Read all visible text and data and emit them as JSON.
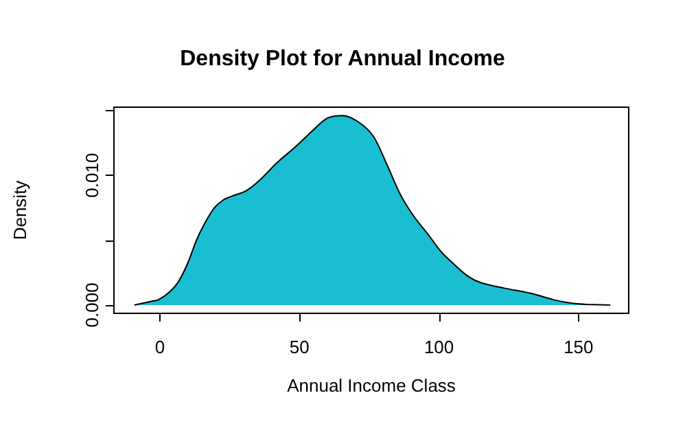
{
  "chart_data": {
    "type": "area",
    "title": "Density Plot for Annual Income",
    "xlabel": "Annual Income Class",
    "ylabel": "Density",
    "x": [
      -9.2,
      -2.8,
      -0.6,
      3.4,
      6.6,
      9.9,
      13.1,
      16.3,
      19.5,
      22.7,
      25.9,
      30.8,
      35.6,
      42.1,
      48.6,
      55.0,
      59.9,
      65.5,
      71.2,
      76.5,
      81.4,
      86.2,
      91.1,
      95.9,
      100.8,
      105.6,
      110.5,
      115.3,
      123.4,
      133.1,
      141.2,
      149.3,
      161.4
    ],
    "series": [
      {
        "color": "#19bfd0",
        "values": [
          0,
          0.0003,
          0.0004,
          0.001,
          0.0018,
          0.0032,
          0.005,
          0.0064,
          0.0075,
          0.0081,
          0.0084,
          0.0088,
          0.0096,
          0.011,
          0.0122,
          0.0135,
          0.0144,
          0.0146,
          0.0141,
          0.013,
          0.0108,
          0.0085,
          0.0068,
          0.0055,
          0.0041,
          0.0031,
          0.0022,
          0.0017,
          0.0013,
          0.0009,
          0.0004,
          0.0001,
          0
        ]
      }
    ],
    "xlim": [
      -16.5,
      168
    ],
    "ylim": [
      -0.00064,
      0.01525
    ],
    "xticks": [
      0,
      50,
      100,
      150
    ],
    "yticks": [
      {
        "value": 0,
        "label": "0.000"
      },
      {
        "value": 0.005,
        "label": null
      },
      {
        "value": 0.01,
        "label": "0.010"
      },
      {
        "value": 0.015,
        "label": null
      }
    ]
  }
}
